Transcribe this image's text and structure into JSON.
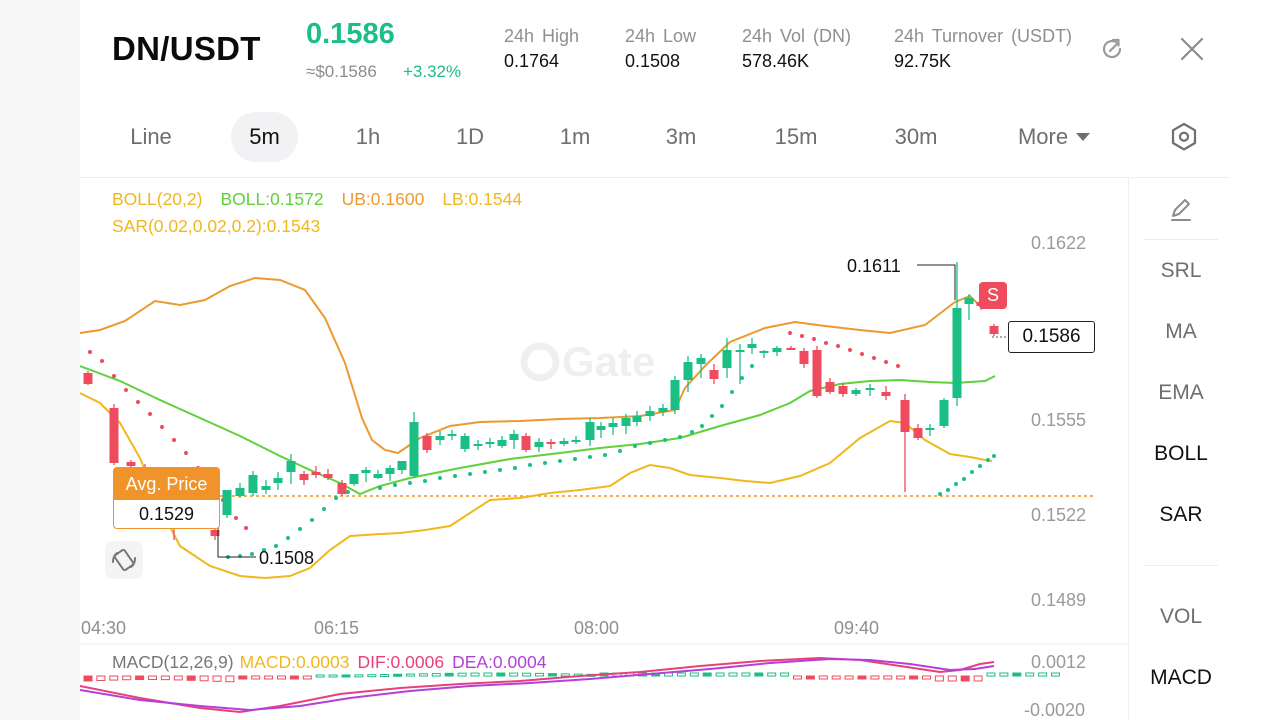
{
  "header": {
    "pair": "DN/USDT",
    "last_price": "0.1586",
    "fiat_price": "≈$0.1586",
    "change_pct": "+3.32%",
    "stats": [
      {
        "label": "24h  High",
        "value": "0.1764"
      },
      {
        "label": "24h  Low",
        "value": "0.1508"
      },
      {
        "label": "24h  Vol (DN)",
        "value": "578.46K"
      },
      {
        "label": "24h  Turnover (USDT)",
        "value": "92.75K"
      }
    ],
    "icons": [
      "refresh-icon",
      "close-icon"
    ]
  },
  "timeframes": {
    "items": [
      "Line",
      "5m",
      "1h",
      "1D",
      "1m",
      "3m",
      "15m",
      "30m",
      "More"
    ],
    "active": "5m"
  },
  "legend": {
    "boll_params": "BOLL(20,2)",
    "boll_mid": "BOLL:0.1572",
    "boll_ub": "UB:0.1600",
    "boll_lb": "LB:0.1544",
    "sar": "SAR(0.02,0.02,0.2):0.1543",
    "macd_params": "MACD(12,26,9)",
    "macd_val": "MACD:0.0003",
    "dif": "DIF:0.0006",
    "dea": "DEA:0.0004"
  },
  "price_axis": [
    "0.1622",
    "0.1555",
    "0.1522",
    "0.1489"
  ],
  "macd_axis": [
    "0.0012",
    "-0.0020"
  ],
  "time_axis": [
    "04:30",
    "06:15",
    "08:00",
    "09:40"
  ],
  "current_price_tag": "0.1586",
  "high_marker": "0.1611",
  "low_marker": "0.1508",
  "avg_price": {
    "title": "Avg. Price",
    "value": "0.1529"
  },
  "sell_badge": "S",
  "watermark": "Gate",
  "side_panel": {
    "items": [
      "SRL",
      "MA",
      "EMA",
      "BOLL",
      "SAR",
      "VOL",
      "MACD"
    ],
    "active": [
      "BOLL",
      "SAR",
      "MACD"
    ]
  },
  "colors": {
    "up": "#1bbf84",
    "down": "#ef4b5e",
    "boll_mid": "#5ed13b",
    "boll_upper": "#ec9a2f",
    "boll_lower": "#f0b81c",
    "avg_line": "#f0932b",
    "dif": "#e9407a",
    "dea": "#b540d8"
  }
}
